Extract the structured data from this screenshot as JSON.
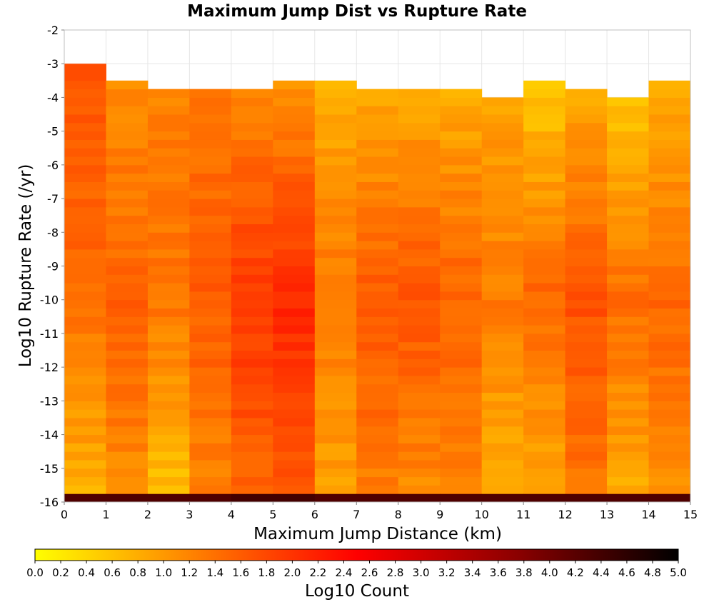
{
  "chart_data": {
    "type": "heatmap",
    "title": "Maximum Jump Dist vs Rupture Rate",
    "xlabel": "Maximum Jump Distance (km)",
    "ylabel": "Log10 Rupture Rate (/yr)",
    "xlim": [
      0,
      15
    ],
    "ylim": [
      -16,
      -2
    ],
    "x_ticks": [
      "0",
      "1",
      "2",
      "3",
      "4",
      "5",
      "6",
      "7",
      "8",
      "9",
      "10",
      "11",
      "12",
      "13",
      "14",
      "15"
    ],
    "y_ticks": [
      "-2",
      "-3",
      "-4",
      "-5",
      "-6",
      "-7",
      "-8",
      "-9",
      "-10",
      "-11",
      "-12",
      "-13",
      "-14",
      "-15",
      "-16"
    ],
    "x_bin_width": 1,
    "y_bin_height": 0.25,
    "colorbar": {
      "label": "Log10 Count",
      "range": [
        0,
        5
      ],
      "ticks": [
        "0.0",
        "0.2",
        "0.4",
        "0.6",
        "0.8",
        "1.0",
        "1.2",
        "1.4",
        "1.6",
        "1.8",
        "2.0",
        "2.2",
        "2.4",
        "2.6",
        "2.8",
        "3.0",
        "3.2",
        "3.4",
        "3.6",
        "3.8",
        "4.0",
        "4.2",
        "4.4",
        "4.6",
        "4.8",
        "5.0"
      ],
      "colors": [
        "#ffff00",
        "#ff7f00",
        "#ff0000",
        "#8b0000",
        "#000000"
      ]
    },
    "grid": true,
    "columns": [
      {
        "x_start": 0,
        "bin_top": -3.0,
        "bottom_row_value": 4.3,
        "low_rate_value": 0.75,
        "mid_rate_value": 1.4,
        "high_rate_value": 1.75
      },
      {
        "x_start": 1,
        "bin_top": -3.5,
        "bottom_row_value": 4.3,
        "low_rate_value": 1.1,
        "mid_rate_value": 1.55,
        "high_rate_value": 1.1
      },
      {
        "x_start": 2,
        "bin_top": -3.75,
        "bottom_row_value": 4.3,
        "low_rate_value": 0.6,
        "mid_rate_value": 1.35,
        "high_rate_value": 1.25
      },
      {
        "x_start": 3,
        "bin_top": -3.75,
        "bottom_row_value": 4.3,
        "low_rate_value": 1.2,
        "mid_rate_value": 1.6,
        "high_rate_value": 1.35
      },
      {
        "x_start": 4,
        "bin_top": -3.75,
        "bottom_row_value": 4.4,
        "low_rate_value": 1.45,
        "mid_rate_value": 2.0,
        "high_rate_value": 1.15
      },
      {
        "x_start": 5,
        "bin_top": -3.5,
        "bottom_row_value": 4.4,
        "low_rate_value": 1.55,
        "mid_rate_value": 2.15,
        "high_rate_value": 1.05
      },
      {
        "x_start": 6,
        "bin_top": -3.5,
        "bottom_row_value": 4.3,
        "low_rate_value": 0.9,
        "mid_rate_value": 1.35,
        "high_rate_value": 0.75
      },
      {
        "x_start": 7,
        "bin_top": -3.75,
        "bottom_row_value": 4.3,
        "low_rate_value": 1.25,
        "mid_rate_value": 1.65,
        "high_rate_value": 0.8
      },
      {
        "x_start": 8,
        "bin_top": -3.75,
        "bottom_row_value": 4.3,
        "low_rate_value": 1.1,
        "mid_rate_value": 1.7,
        "high_rate_value": 0.85
      },
      {
        "x_start": 9,
        "bin_top": -3.75,
        "bottom_row_value": 4.3,
        "low_rate_value": 1.2,
        "mid_rate_value": 1.55,
        "high_rate_value": 0.8
      },
      {
        "x_start": 10,
        "bin_top": -4.0,
        "bottom_row_value": 4.3,
        "low_rate_value": 0.7,
        "mid_rate_value": 1.3,
        "high_rate_value": 0.9
      },
      {
        "x_start": 11,
        "bin_top": -3.5,
        "bottom_row_value": 4.3,
        "low_rate_value": 0.8,
        "mid_rate_value": 1.5,
        "high_rate_value": 0.5
      },
      {
        "x_start": 12,
        "bin_top": -3.75,
        "bottom_row_value": 4.3,
        "low_rate_value": 1.35,
        "mid_rate_value": 1.7,
        "high_rate_value": 0.8
      },
      {
        "x_start": 13,
        "bin_top": -4.0,
        "bottom_row_value": 4.3,
        "low_rate_value": 0.8,
        "mid_rate_value": 1.45,
        "high_rate_value": 0.55
      },
      {
        "x_start": 14,
        "bin_top": -3.5,
        "bottom_row_value": 4.3,
        "low_rate_value": 1.05,
        "mid_rate_value": 1.5,
        "high_rate_value": 0.75
      }
    ]
  }
}
